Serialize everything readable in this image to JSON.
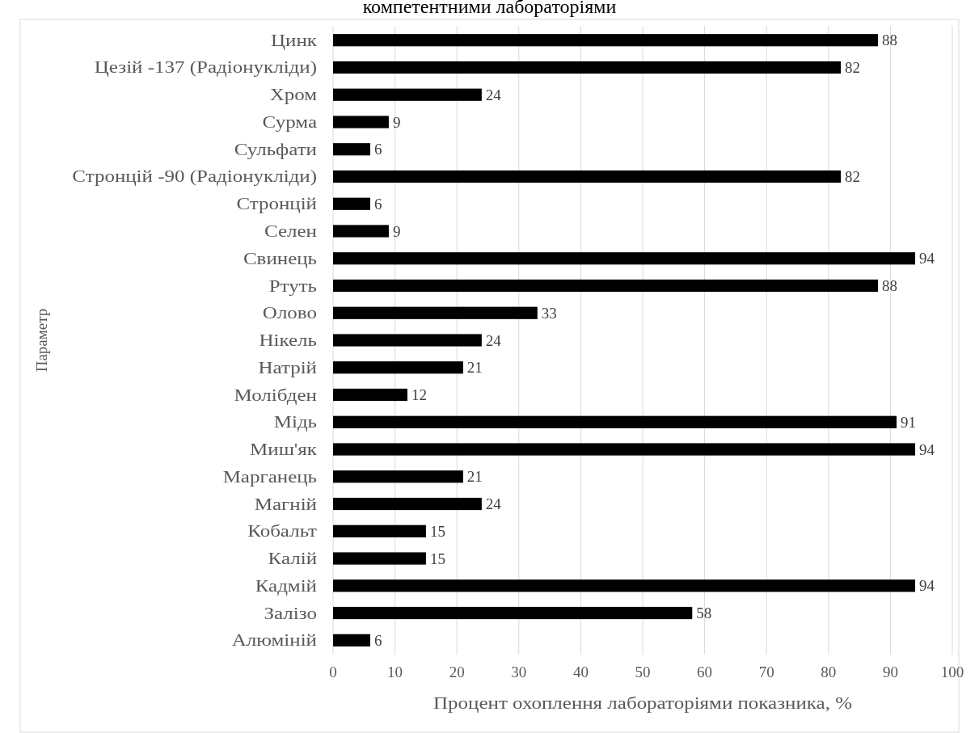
{
  "chart_data": {
    "type": "bar",
    "orientation": "horizontal",
    "title": "компетентними лабораторіями",
    "xlabel": "Процент охоплення лабораторіями показника, %",
    "ylabel": "Параметр",
    "categories": [
      "Цинк",
      "Цезій  -137 (Радіонукліди)",
      "Хром",
      "Сурма",
      "Сульфати",
      "Стронцій -90 (Радіонукліди)",
      "Стронцій",
      "Селен",
      "Свинець",
      "Ртуть",
      "Олово",
      "Нікель",
      "Натрій",
      "Молібден",
      "Мідь",
      "Миш'як",
      "Марганець",
      "Магній",
      "Кобальт",
      "Калій",
      "Кадмій",
      "Залізо",
      "Алюміній"
    ],
    "values": [
      88,
      82,
      24,
      9,
      6,
      82,
      6,
      9,
      94,
      88,
      33,
      24,
      21,
      12,
      91,
      94,
      21,
      24,
      15,
      15,
      94,
      58,
      6
    ],
    "color": "#000000",
    "data_labels": true,
    "xlim": [
      0,
      100
    ],
    "xticks": [
      0,
      10,
      20,
      30,
      40,
      50,
      60,
      70,
      80,
      90,
      100
    ],
    "grid": "x"
  }
}
